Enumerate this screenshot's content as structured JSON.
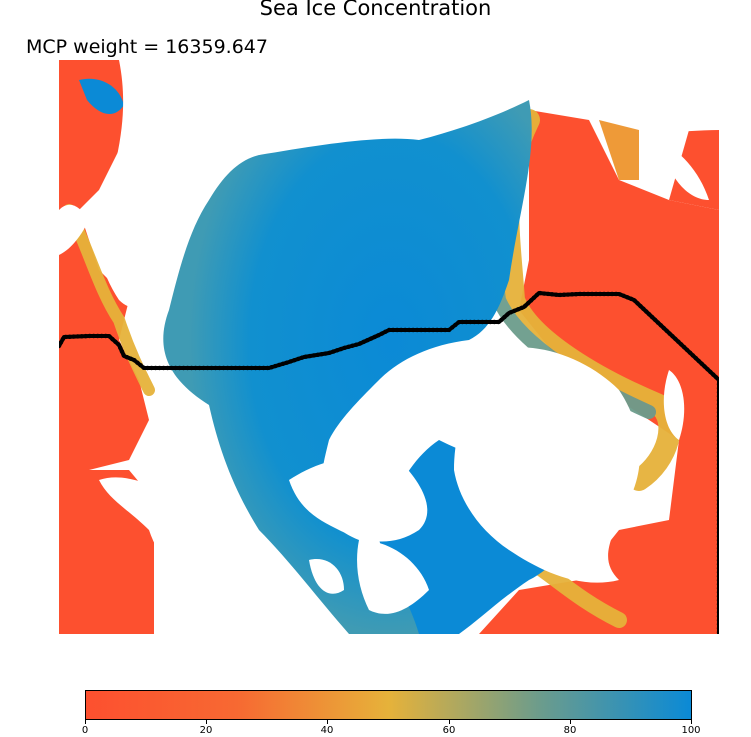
{
  "title": "Sea Ice Concentration",
  "mcp_weight_text": "MCP weight = 16359.647",
  "colorbar": {
    "min": 0,
    "max": 100,
    "ticks": [
      "0",
      "20",
      "40",
      "60",
      "80",
      "100"
    ],
    "colors": [
      "#fd502f",
      "#f76932",
      "#e6b23a",
      "#6c9c8c",
      "#0b8ad6"
    ]
  },
  "map": {
    "land_color": "#ffffff",
    "path_color": "#000000",
    "ice_high_color": "#0b8ad6",
    "open_water_color": "#fd502f"
  }
}
